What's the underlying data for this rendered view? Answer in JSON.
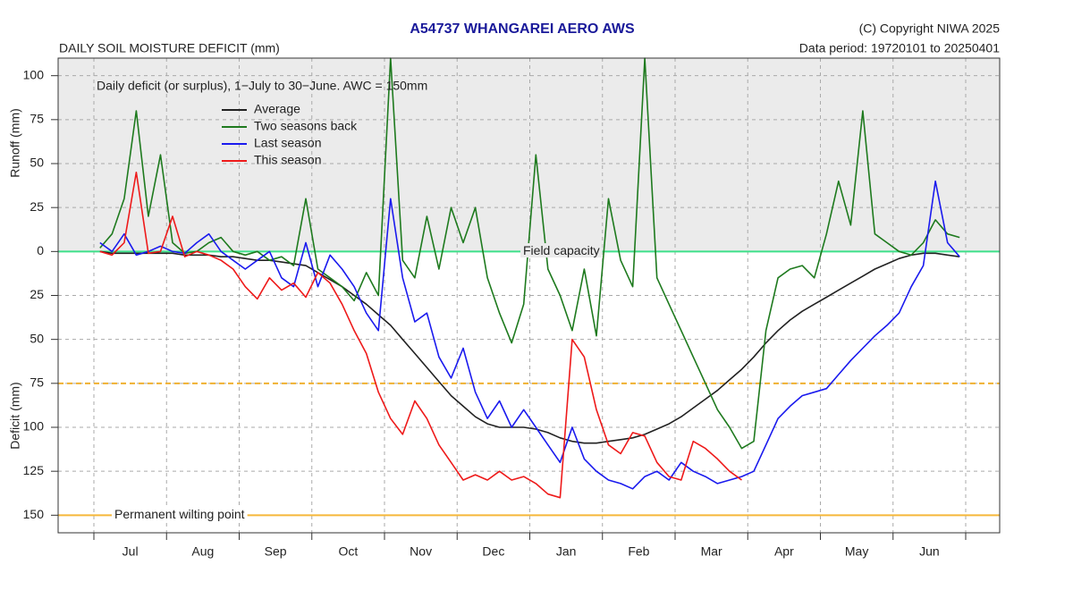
{
  "chart_data": {
    "type": "line",
    "title": "A54737  WHANGAREI AERO AWS",
    "copyright": "(C) Copyright NIWA  2025",
    "subtitle": "DAILY SOIL MOISTURE DEFICIT (mm)",
    "data_period": "Data period:  19720101  to  20250401",
    "note": "Daily deficit (or surplus), 1−July to 30−June.  AWC = 150mm",
    "y_label_top": "Runoff (mm)",
    "y_label_bottom": "Deficit (mm)",
    "categories": [
      "Jul",
      "Aug",
      "Sep",
      "Oct",
      "Nov",
      "Dec",
      "Jan",
      "Feb",
      "Mar",
      "Apr",
      "May",
      "Jun"
    ],
    "ylim": [
      -160,
      110
    ],
    "yticks": [
      100,
      75,
      50,
      25,
      0,
      {
        "value": -25,
        "label": "25"
      },
      {
        "value": -50,
        "label": "50"
      },
      {
        "value": -75,
        "label": "75"
      },
      {
        "value": -100,
        "label": "100"
      },
      {
        "value": -125,
        "label": "125"
      },
      {
        "value": -150,
        "label": "150"
      }
    ],
    "grid": true,
    "legend": "upper left",
    "reference_lines": [
      {
        "value": 0,
        "label": "Field capacity",
        "color": "#3ee08a",
        "style": "solid"
      },
      {
        "value": -75,
        "color": "#f0b030",
        "style": "dashed"
      },
      {
        "value": -150,
        "label": "Permanent wilting point",
        "color": "#f5b83a",
        "style": "solid"
      }
    ],
    "series": [
      {
        "name": "Average",
        "color": "#222222",
        "values": [
          [
            0,
            -1,
            -1,
            -1,
            -1,
            -1
          ],
          [
            -1,
            -2,
            -2,
            -2,
            -3,
            -3
          ],
          [
            -4,
            -5,
            -5,
            -6,
            -7,
            -8
          ],
          [
            -12,
            -16,
            -20,
            -25,
            -30,
            -36
          ],
          [
            -42,
            -50,
            -58,
            -66,
            -74,
            -82
          ],
          [
            -88,
            -94,
            -98,
            -100,
            -100,
            -100
          ],
          [
            -101,
            -103,
            -106,
            -108,
            -109,
            -109
          ],
          [
            -108,
            -107,
            -106,
            -104,
            -101,
            -98
          ],
          [
            -94,
            -89,
            -84,
            -79,
            -73,
            -67
          ],
          [
            -60,
            -52,
            -45,
            -39,
            -34,
            -30
          ],
          [
            -26,
            -22,
            -18,
            -14,
            -10,
            -7
          ],
          [
            -4,
            -2,
            -1,
            -1,
            -2,
            -3
          ]
        ]
      },
      {
        "name": "Two seasons back",
        "color": "#1e7a1e",
        "values": [
          [
            2,
            10,
            30,
            80,
            20,
            55
          ],
          [
            5,
            -1,
            0,
            5,
            8,
            0
          ],
          [
            -2,
            0,
            -5,
            -3,
            -8,
            30
          ],
          [
            -10,
            -15,
            -20,
            -28,
            -12,
            -25
          ],
          [
            110,
            -5,
            -15,
            20,
            -10,
            25
          ],
          [
            5,
            25,
            -15,
            -35,
            -52,
            -30
          ],
          [
            55,
            -10,
            -25,
            -45,
            -10,
            -48
          ],
          [
            30,
            -5,
            -20,
            110,
            -15,
            -30
          ],
          [
            -45,
            -60,
            -75,
            -90,
            -100,
            -112
          ],
          [
            -108,
            -45,
            -15,
            -10,
            -8,
            -15
          ],
          [
            10,
            40,
            15,
            80,
            10,
            5
          ],
          [
            0,
            -2,
            5,
            18,
            10,
            8
          ]
        ]
      },
      {
        "name": "Last season",
        "color": "#1a1aee",
        "values": [
          [
            5,
            0,
            10,
            -2,
            0,
            3
          ],
          [
            0,
            -1,
            5,
            10,
            0,
            -5
          ],
          [
            -10,
            -5,
            0,
            -15,
            -20,
            5
          ],
          [
            -20,
            -2,
            -10,
            -20,
            -35,
            -45
          ],
          [
            30,
            -15,
            -40,
            -35,
            -60,
            -72
          ],
          [
            -55,
            -80,
            -95,
            -85,
            -100,
            -90
          ],
          [
            -100,
            -110,
            -120,
            -100,
            -118,
            -125
          ],
          [
            -130,
            -132,
            -135,
            -128,
            -125,
            -130
          ],
          [
            -120,
            -125,
            -128,
            -132,
            -130,
            -128
          ],
          [
            -125,
            -110,
            -95,
            -88,
            -82,
            -80
          ],
          [
            -78,
            -70,
            -62,
            -55,
            -48,
            -42
          ],
          [
            -35,
            -20,
            -8,
            40,
            5,
            -3
          ]
        ]
      },
      {
        "name": "This season",
        "color": "#ee1a1a",
        "values": [
          [
            0,
            -2,
            5,
            45,
            -1,
            0
          ],
          [
            20,
            -3,
            0,
            -2,
            -5,
            -10
          ],
          [
            -20,
            -27,
            -15,
            -22,
            -18,
            -26
          ],
          [
            -12,
            -18,
            -30,
            -45,
            -58,
            -80
          ],
          [
            -95,
            -104,
            -85,
            -95,
            -110,
            -120
          ],
          [
            -130,
            -127,
            -130,
            -125,
            -130,
            -128
          ],
          [
            -132,
            -138,
            -140,
            -50,
            -60,
            -90
          ],
          [
            -110,
            -115,
            -103,
            -105,
            -120,
            -128
          ],
          [
            -130,
            -108,
            -112,
            -118,
            -125,
            -130
          ],
          [
            null,
            null,
            null,
            null,
            null,
            null
          ],
          [
            null,
            null,
            null,
            null,
            null,
            null
          ],
          [
            null,
            null,
            null,
            null,
            null,
            null
          ]
        ]
      }
    ]
  }
}
